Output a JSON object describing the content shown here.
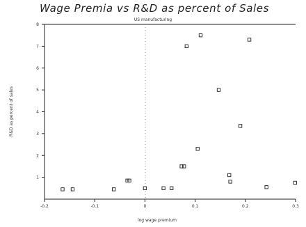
{
  "chart_data": {
    "type": "scatter",
    "title": "Wage Premia vs R&D as percent of Sales",
    "subtitle": "US manufacturing",
    "xlabel": "log wage premium",
    "ylabel": "R&D as percent of sales",
    "xlim": [
      -0.2,
      0.3
    ],
    "ylim": [
      0,
      8
    ],
    "x_ticks": [
      -0.2,
      -0.1,
      0,
      0.1,
      0.2,
      0.3
    ],
    "x_tick_labels": [
      "-0.2",
      "-0.1",
      "0",
      "0.1",
      "0.2",
      "0.3"
    ],
    "y_ticks": [
      1,
      2,
      3,
      4,
      5,
      6,
      7,
      8
    ],
    "y_tick_labels": [
      "1",
      "2",
      "3",
      "4",
      "5",
      "6",
      "7",
      "8"
    ],
    "zero_line_x": 0,
    "marker": "square",
    "legend": false,
    "grid": false,
    "points": [
      {
        "x": -0.164,
        "y": 0.45
      },
      {
        "x": -0.144,
        "y": 0.45
      },
      {
        "x": -0.062,
        "y": 0.45
      },
      {
        "x": -0.035,
        "y": 0.85
      },
      {
        "x": -0.031,
        "y": 0.85
      },
      {
        "x": 0.0,
        "y": 0.5
      },
      {
        "x": 0.037,
        "y": 0.5
      },
      {
        "x": 0.053,
        "y": 0.5
      },
      {
        "x": 0.073,
        "y": 1.5
      },
      {
        "x": 0.078,
        "y": 1.5
      },
      {
        "x": 0.083,
        "y": 7.0
      },
      {
        "x": 0.105,
        "y": 2.3
      },
      {
        "x": 0.111,
        "y": 7.5
      },
      {
        "x": 0.147,
        "y": 5.0
      },
      {
        "x": 0.168,
        "y": 1.1
      },
      {
        "x": 0.17,
        "y": 0.8
      },
      {
        "x": 0.19,
        "y": 3.35
      },
      {
        "x": 0.208,
        "y": 7.3
      },
      {
        "x": 0.242,
        "y": 0.55
      },
      {
        "x": 0.299,
        "y": 0.75
      }
    ]
  }
}
